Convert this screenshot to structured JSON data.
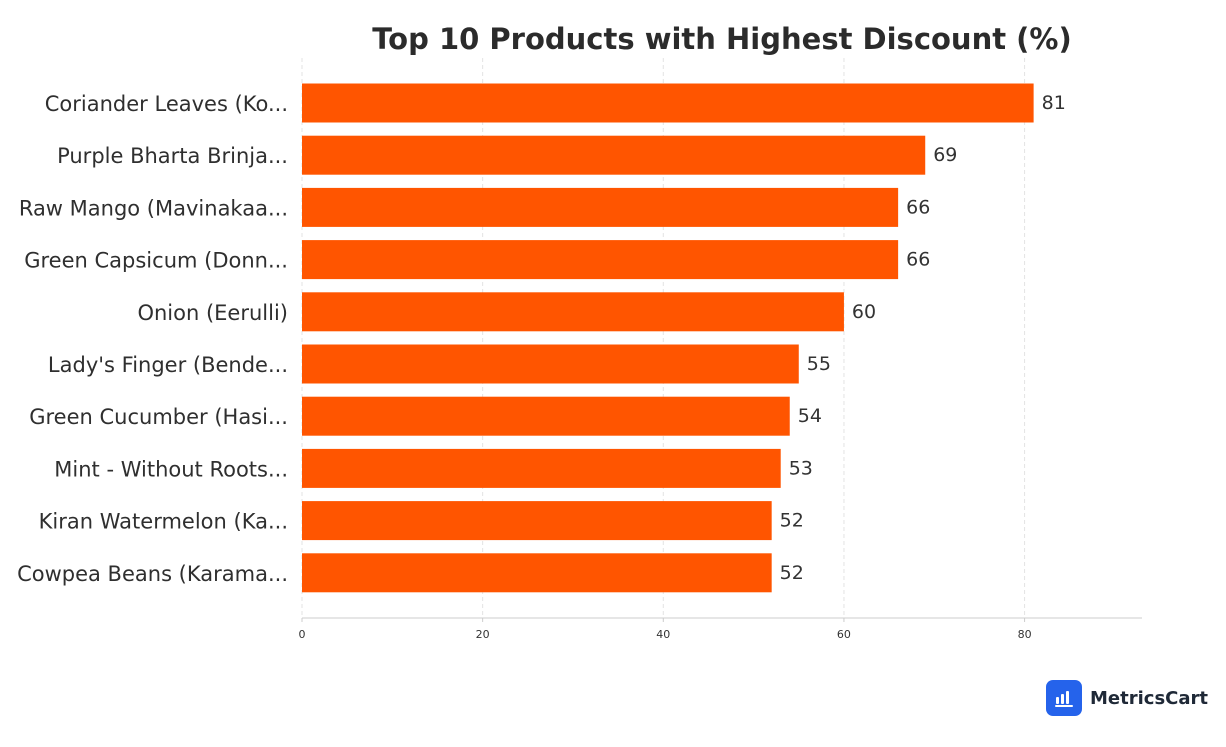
{
  "chart_data": {
    "type": "bar",
    "orientation": "horizontal",
    "title": "Top 10 Products with Highest Discount (%)",
    "xlabel": "",
    "ylabel": "",
    "categories": [
      "Coriander Leaves (Ko...",
      "Purple Bharta Brinja...",
      "Raw Mango (Mavinakaa...",
      "Green Capsicum (Donn...",
      "Onion (Eerulli)",
      "Lady's Finger (Bende...",
      "Green Cucumber (Hasi...",
      "Mint - Without Roots...",
      "Kiran Watermelon (Ka...",
      "Cowpea Beans (Karama..."
    ],
    "values": [
      81,
      69,
      66,
      66,
      60,
      55,
      54,
      53,
      52,
      52
    ],
    "value_labels": [
      "81",
      "69",
      "66",
      "66",
      "60",
      "55",
      "54",
      "53",
      "52",
      "52"
    ],
    "xlim": [
      0,
      93
    ],
    "xticks": [
      0,
      20,
      40,
      60,
      80
    ],
    "xtick_labels": [
      "0",
      "20",
      "40",
      "60",
      "80"
    ],
    "grid": "vertical dashed",
    "bar_color": "#ff5500"
  },
  "brand": {
    "name": "MetricsCart",
    "icon": "bar-chart-icon",
    "color": "#2563eb"
  }
}
